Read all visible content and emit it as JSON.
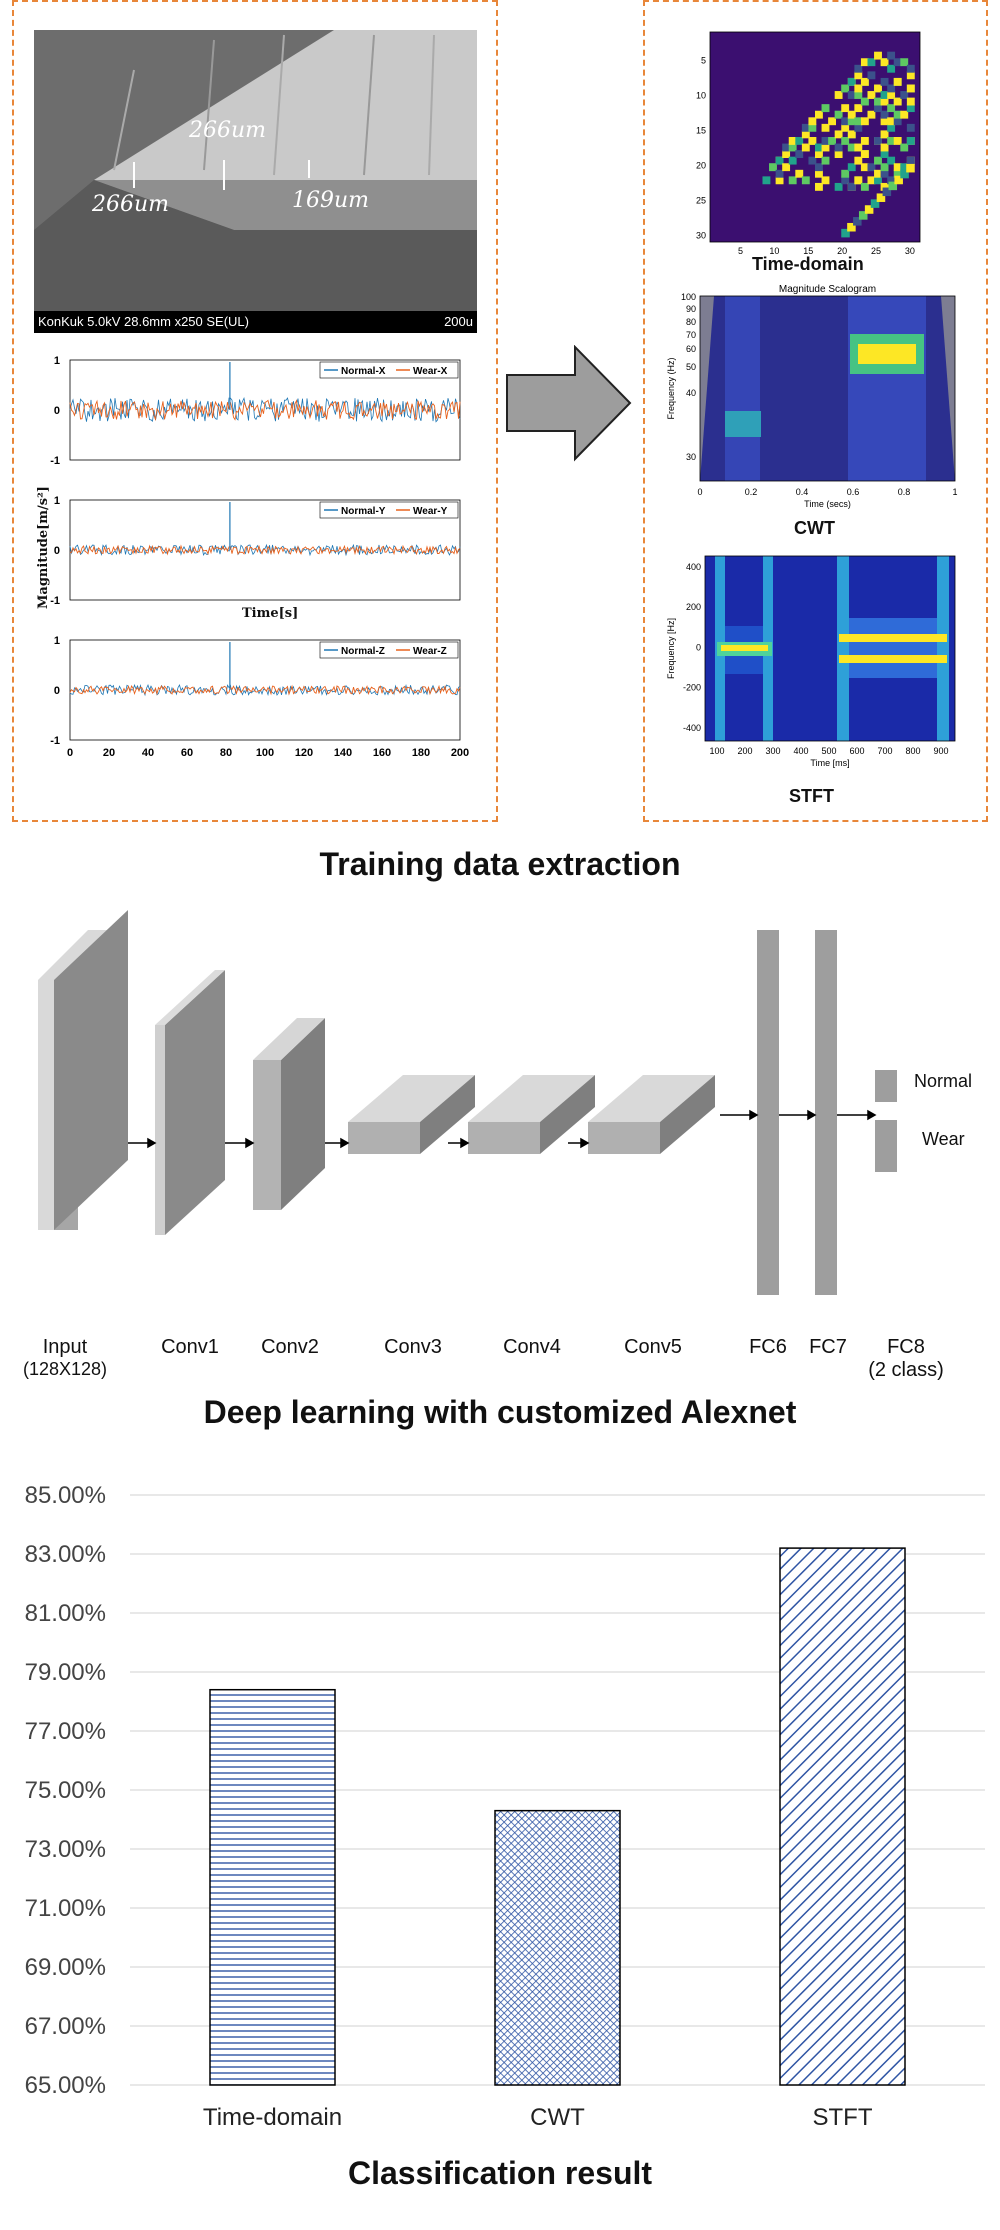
{
  "training": {
    "title": "Training data extraction",
    "sem": {
      "measure1": "266um",
      "measure2": "266um",
      "measure3": "169um",
      "footer": "KonKuk 5.0kV 28.6mm x250 SE(UL)",
      "scale": "200u"
    },
    "signals": {
      "ylabel": "Magnitude[m/s²]",
      "xlabel": "Time[s]",
      "xticks": [
        "0",
        "20",
        "40",
        "60",
        "80",
        "100",
        "120",
        "140",
        "160",
        "180",
        "200"
      ],
      "yticks": [
        "1",
        "0",
        "-1"
      ],
      "panels": [
        {
          "legend_a": "Normal-X",
          "legend_b": "Wear-X"
        },
        {
          "legend_a": "Normal-Y",
          "legend_b": "Wear-Y"
        },
        {
          "legend_a": "Normal-Z",
          "legend_b": "Wear-Z"
        }
      ]
    },
    "time_domain": {
      "label": "Time-domain",
      "yticks": [
        "5",
        "10",
        "15",
        "20",
        "25",
        "30"
      ],
      "xticks": [
        "5",
        "10",
        "15",
        "20",
        "25",
        "30"
      ]
    },
    "cwt": {
      "label": "CWT",
      "title": "Magnitude Scalogram",
      "ylabel": "Frequency (Hz)",
      "xlabel": "Time (secs)",
      "yticks": [
        "100",
        "90",
        "80",
        "70",
        "60",
        "50",
        "40",
        "30"
      ],
      "xticks": [
        "0",
        "0.2",
        "0.4",
        "0.6",
        "0.8",
        "1"
      ]
    },
    "stft": {
      "label": "STFT",
      "ylabel": "Frequency [Hz]",
      "xlabel": "Time [ms]",
      "yticks": [
        "400",
        "200",
        "0",
        "-200",
        "-400"
      ],
      "xticks": [
        "100",
        "200",
        "300",
        "400",
        "500",
        "600",
        "700",
        "800",
        "900"
      ]
    }
  },
  "network": {
    "title": "Deep learning with customized Alexnet",
    "layers": [
      "Input",
      "Conv1",
      "Conv2",
      "Conv3",
      "Conv4",
      "Conv5",
      "FC6",
      "FC7",
      "FC8"
    ],
    "input_sub": "(128X128)",
    "fc8_sub": "(2 class)",
    "outputs": [
      "Normal",
      "Wear"
    ]
  },
  "results": {
    "title": "Classification result",
    "colors": {
      "bar_stroke": "#2f55a4",
      "grid": "#d9d9d9"
    }
  },
  "chart_data": {
    "type": "bar",
    "title": "Classification result",
    "categories": [
      "Time-domain",
      "CWT",
      "STFT"
    ],
    "values": [
      78.4,
      74.3,
      83.2
    ],
    "ylim": [
      65,
      85
    ],
    "yticks": [
      "85.00%",
      "83.00%",
      "81.00%",
      "79.00%",
      "77.00%",
      "75.00%",
      "73.00%",
      "71.00%",
      "69.00%",
      "67.00%",
      "65.00%"
    ],
    "xlabel": "",
    "ylabel": "",
    "grid": true
  }
}
